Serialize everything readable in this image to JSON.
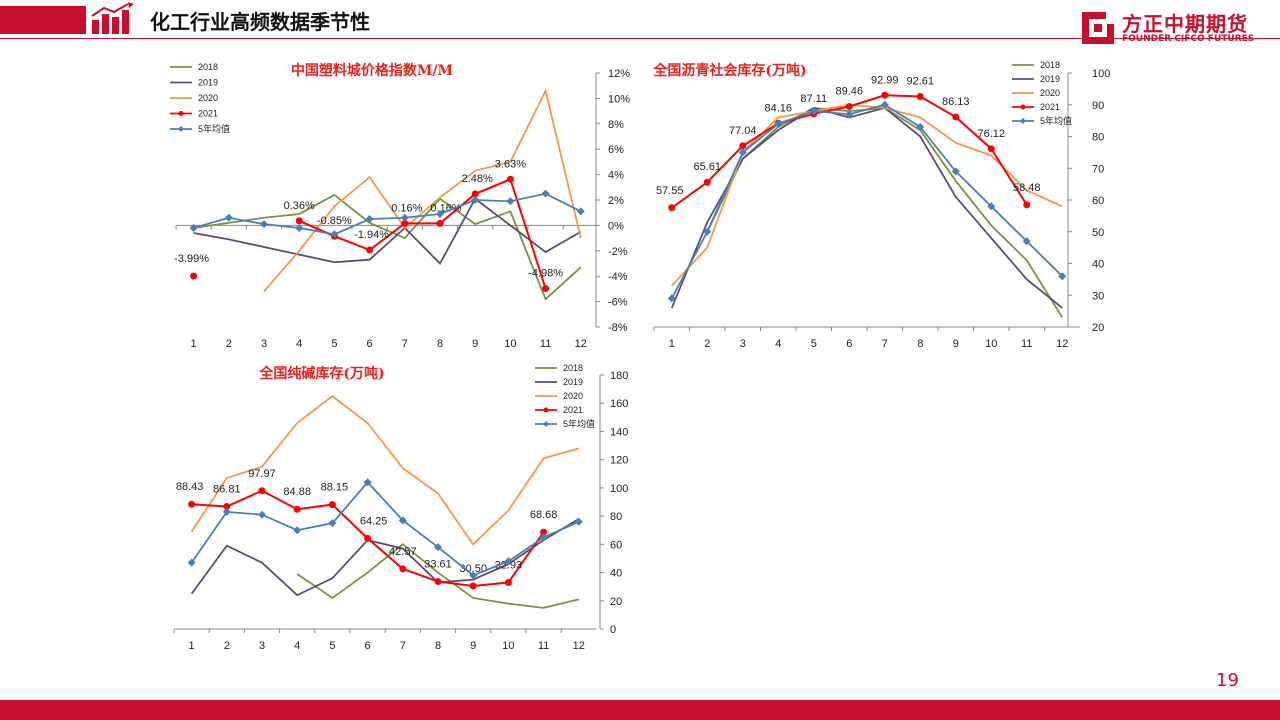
{
  "header": {
    "title": "化工行业高频数据季节性"
  },
  "brand": {
    "name_cn": "方正中期期货",
    "name_en": "FOUNDER CIFCO FUTURES"
  },
  "page": {
    "number": "19"
  },
  "colors": {
    "accent": "#c8102e",
    "s2018": "#77933c",
    "s2019": "#604a7b",
    "s2020": "#f79646",
    "s2021": "#ff0000",
    "savg": "#4a7ebb"
  },
  "chart_data": [
    {
      "type": "line",
      "title": "中国塑料城价格指数M/M",
      "categories": [
        "1",
        "2",
        "3",
        "4",
        "5",
        "6",
        "7",
        "8",
        "9",
        "10",
        "11",
        "12"
      ],
      "ylim": [
        -8,
        12
      ],
      "yticks": [
        "-8%",
        "-6%",
        "-4%",
        "-2%",
        "0%",
        "2%",
        "4%",
        "6%",
        "8%",
        "10%",
        "12%"
      ],
      "legend": "top-left",
      "series": [
        {
          "name": "2018",
          "values": [
            -0.2,
            0.2,
            0.6,
            0.9,
            2.4,
            0.2,
            -1.0,
            2.1,
            0.1,
            1.1,
            -5.8,
            -3.3
          ]
        },
        {
          "name": "2019",
          "values": [
            -0.6,
            -1.1,
            -1.7,
            -2.3,
            -2.9,
            -2.7,
            -0.2,
            -3.0,
            2.1,
            0.0,
            -2.1,
            -0.5
          ]
        },
        {
          "name": "2020",
          "values": [
            null,
            null,
            -5.2,
            -2.0,
            1.5,
            3.8,
            -0.2,
            2.2,
            4.3,
            5.0,
            10.6,
            -1.0
          ]
        },
        {
          "name": "2021",
          "values": [
            -3.99,
            null,
            null,
            0.36,
            -0.85,
            -1.94,
            0.16,
            0.16,
            2.48,
            3.63,
            -4.98,
            null
          ],
          "labels": [
            "-3.99%",
            "",
            "",
            "0.36%",
            "-0.85%",
            "-1.94%",
            "0.16%",
            "0.16%",
            "2.48%",
            "3.63%",
            "-4.98%",
            ""
          ]
        },
        {
          "name": "5年均值",
          "values": [
            -0.2,
            0.6,
            0.1,
            -0.2,
            -0.7,
            0.5,
            0.6,
            0.9,
            2.0,
            1.9,
            2.5,
            1.1
          ]
        }
      ]
    },
    {
      "type": "line",
      "title": "全国沥青社会库存(万吨)",
      "categories": [
        "1",
        "2",
        "3",
        "4",
        "5",
        "6",
        "7",
        "8",
        "9",
        "10",
        "11",
        "12"
      ],
      "ylim": [
        20,
        100
      ],
      "yticks": [
        "20",
        "30",
        "40",
        "50",
        "60",
        "70",
        "80",
        "90",
        "100"
      ],
      "legend": "top-right",
      "series": [
        {
          "name": "2018",
          "values": [
            null,
            50,
            73,
            83,
            89,
            88,
            89,
            82,
            66,
            52,
            41,
            23
          ]
        },
        {
          "name": "2019",
          "values": [
            26,
            53,
            73,
            82,
            89,
            86,
            89,
            80,
            61,
            48,
            35,
            26
          ]
        },
        {
          "name": "2020",
          "values": [
            33,
            45,
            75,
            86,
            88,
            90,
            89,
            86,
            78,
            74,
            63,
            58
          ]
        },
        {
          "name": "2021",
          "values": [
            57.55,
            65.61,
            77.04,
            84.16,
            87.11,
            89.46,
            92.99,
            92.61,
            86.13,
            76.12,
            58.48,
            null
          ],
          "labels": [
            "57.55",
            "65.61",
            "77.04",
            "84.16",
            "87.11",
            "89.46",
            "92.99",
            "92.61",
            "86.13",
            "76.12",
            "58.48",
            ""
          ]
        },
        {
          "name": "5年均值",
          "values": [
            29,
            50,
            75,
            84,
            88,
            87,
            90,
            83,
            69,
            58,
            47,
            36
          ]
        }
      ]
    },
    {
      "type": "line",
      "title": "全国纯碱库存(万吨)",
      "categories": [
        "1",
        "2",
        "3",
        "4",
        "5",
        "6",
        "7",
        "8",
        "9",
        "10",
        "11",
        "12"
      ],
      "ylim": [
        0,
        180
      ],
      "yticks": [
        "0",
        "20",
        "40",
        "60",
        "80",
        "100",
        "120",
        "140",
        "160",
        "180"
      ],
      "legend": "top-right",
      "series": [
        {
          "name": "2018",
          "values": [
            null,
            null,
            null,
            39,
            22,
            40,
            60,
            40,
            22,
            18,
            15,
            21
          ]
        },
        {
          "name": "2019",
          "values": [
            25,
            59,
            47,
            24,
            36,
            63,
            57,
            33,
            35,
            46,
            63,
            78
          ]
        },
        {
          "name": "2020",
          "values": [
            69,
            107,
            115,
            146,
            165,
            146,
            114,
            96,
            60,
            84,
            121,
            128
          ]
        },
        {
          "name": "2021",
          "values": [
            88.43,
            86.81,
            97.97,
            84.88,
            88.15,
            64.25,
            42.57,
            33.61,
            30.5,
            32.93,
            68.68,
            null
          ],
          "labels": [
            "88.43",
            "86.81",
            "97.97",
            "84.88",
            "88.15",
            "64.25",
            "42.57",
            "33.61",
            "30.50",
            "32.93",
            "68.68",
            ""
          ]
        },
        {
          "name": "5年均值",
          "values": [
            47,
            83,
            81,
            70,
            75,
            104,
            77,
            58,
            38,
            48,
            65,
            76
          ]
        }
      ]
    }
  ]
}
